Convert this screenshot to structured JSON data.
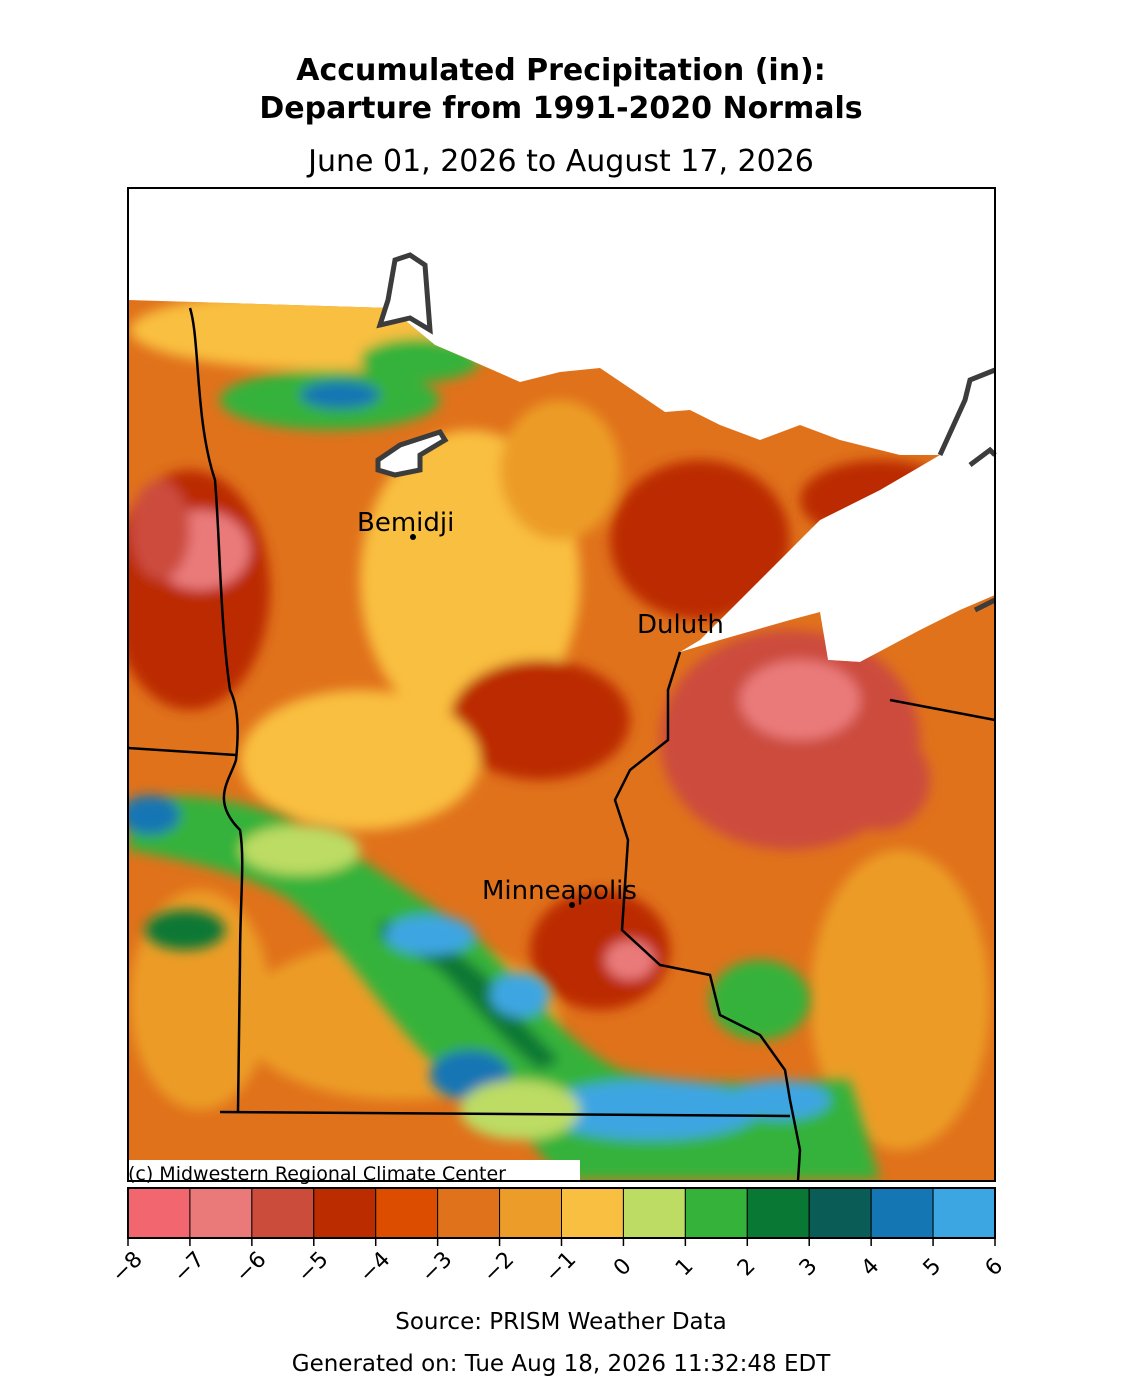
{
  "header": {
    "title_line1": "Accumulated Precipitation (in):",
    "title_line2": "Departure from 1991-2020 Normals",
    "subtitle": "June 01, 2026 to August 17, 2026"
  },
  "map": {
    "cities": [
      {
        "name": "Bemidji"
      },
      {
        "name": "Duluth"
      },
      {
        "name": "Minneapolis"
      }
    ],
    "credit": "(c) Midwestern Regional Climate Center"
  },
  "colorbar": {
    "ticks": [
      {
        "value": -8,
        "label": "−8"
      },
      {
        "value": -7,
        "label": "−7"
      },
      {
        "value": -6,
        "label": "−6"
      },
      {
        "value": -5,
        "label": "−5"
      },
      {
        "value": -4,
        "label": "−4"
      },
      {
        "value": -3,
        "label": "−3"
      },
      {
        "value": -2,
        "label": "−2"
      },
      {
        "value": -1,
        "label": "−1"
      },
      0,
      1,
      2,
      3,
      4,
      5,
      6
    ],
    "colors": [
      "#f2676f",
      "#ea7a7a",
      "#cc4c3c",
      "#bb2c00",
      "#dc4d00",
      "#e0721b",
      "#ec9c28",
      "#f9bf40",
      "#bcdc64",
      "#34b23a",
      "#087834",
      "#0a5c56",
      "#1576b4",
      "#3ca6e2"
    ]
  },
  "footer": {
    "source": "Source: PRISM Weather Data",
    "generated": "Generated on: Tue Aug 18, 2026 11:32:48 EDT"
  }
}
